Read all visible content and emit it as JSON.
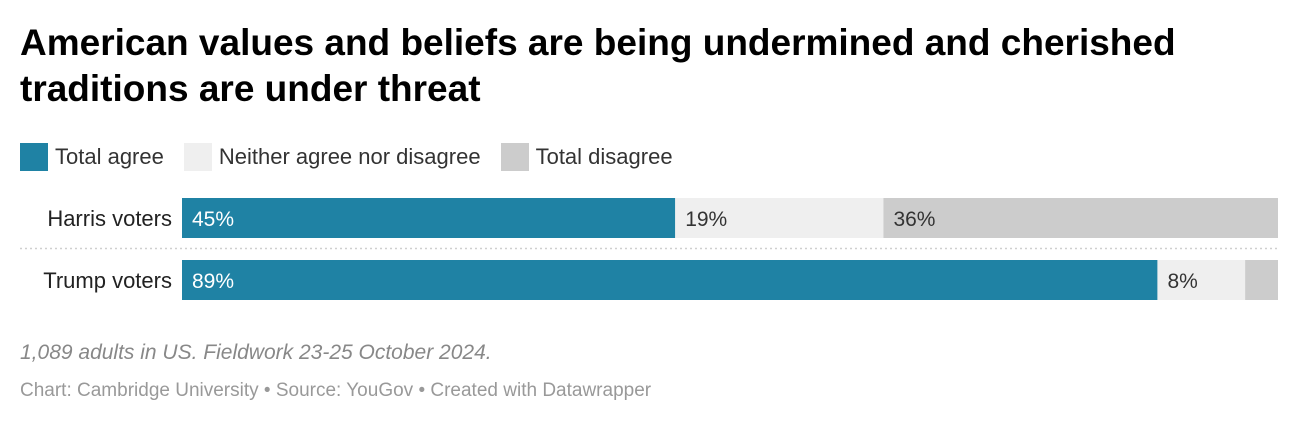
{
  "title": "American values and beliefs are being undermined and cherished traditions are under threat",
  "chart_data": {
    "type": "bar",
    "orientation": "horizontal",
    "stacked": true,
    "categories": [
      "Harris voters",
      "Trump voters"
    ],
    "series": [
      {
        "name": "Total agree",
        "values": [
          45,
          89
        ],
        "color": "#1f82a4",
        "label_color": "#ffffff"
      },
      {
        "name": "Neither agree nor disagree",
        "values": [
          19,
          8
        ],
        "color": "#efefef",
        "label_color": "#333333"
      },
      {
        "name": "Total disagree",
        "values": [
          36,
          3
        ],
        "color": "#cccccc",
        "label_color": "#333333"
      }
    ],
    "value_labels": [
      [
        "45%",
        "89%"
      ],
      [
        "19%",
        "8%"
      ],
      [
        "36%",
        ""
      ]
    ],
    "xlim": [
      0,
      100
    ],
    "legend_position": "top-left"
  },
  "footer": {
    "note": "1,089 adults in US. Fieldwork 23-25 October 2024.",
    "source": "Chart: Cambridge University • Source: YouGov • Created with Datawrapper"
  }
}
